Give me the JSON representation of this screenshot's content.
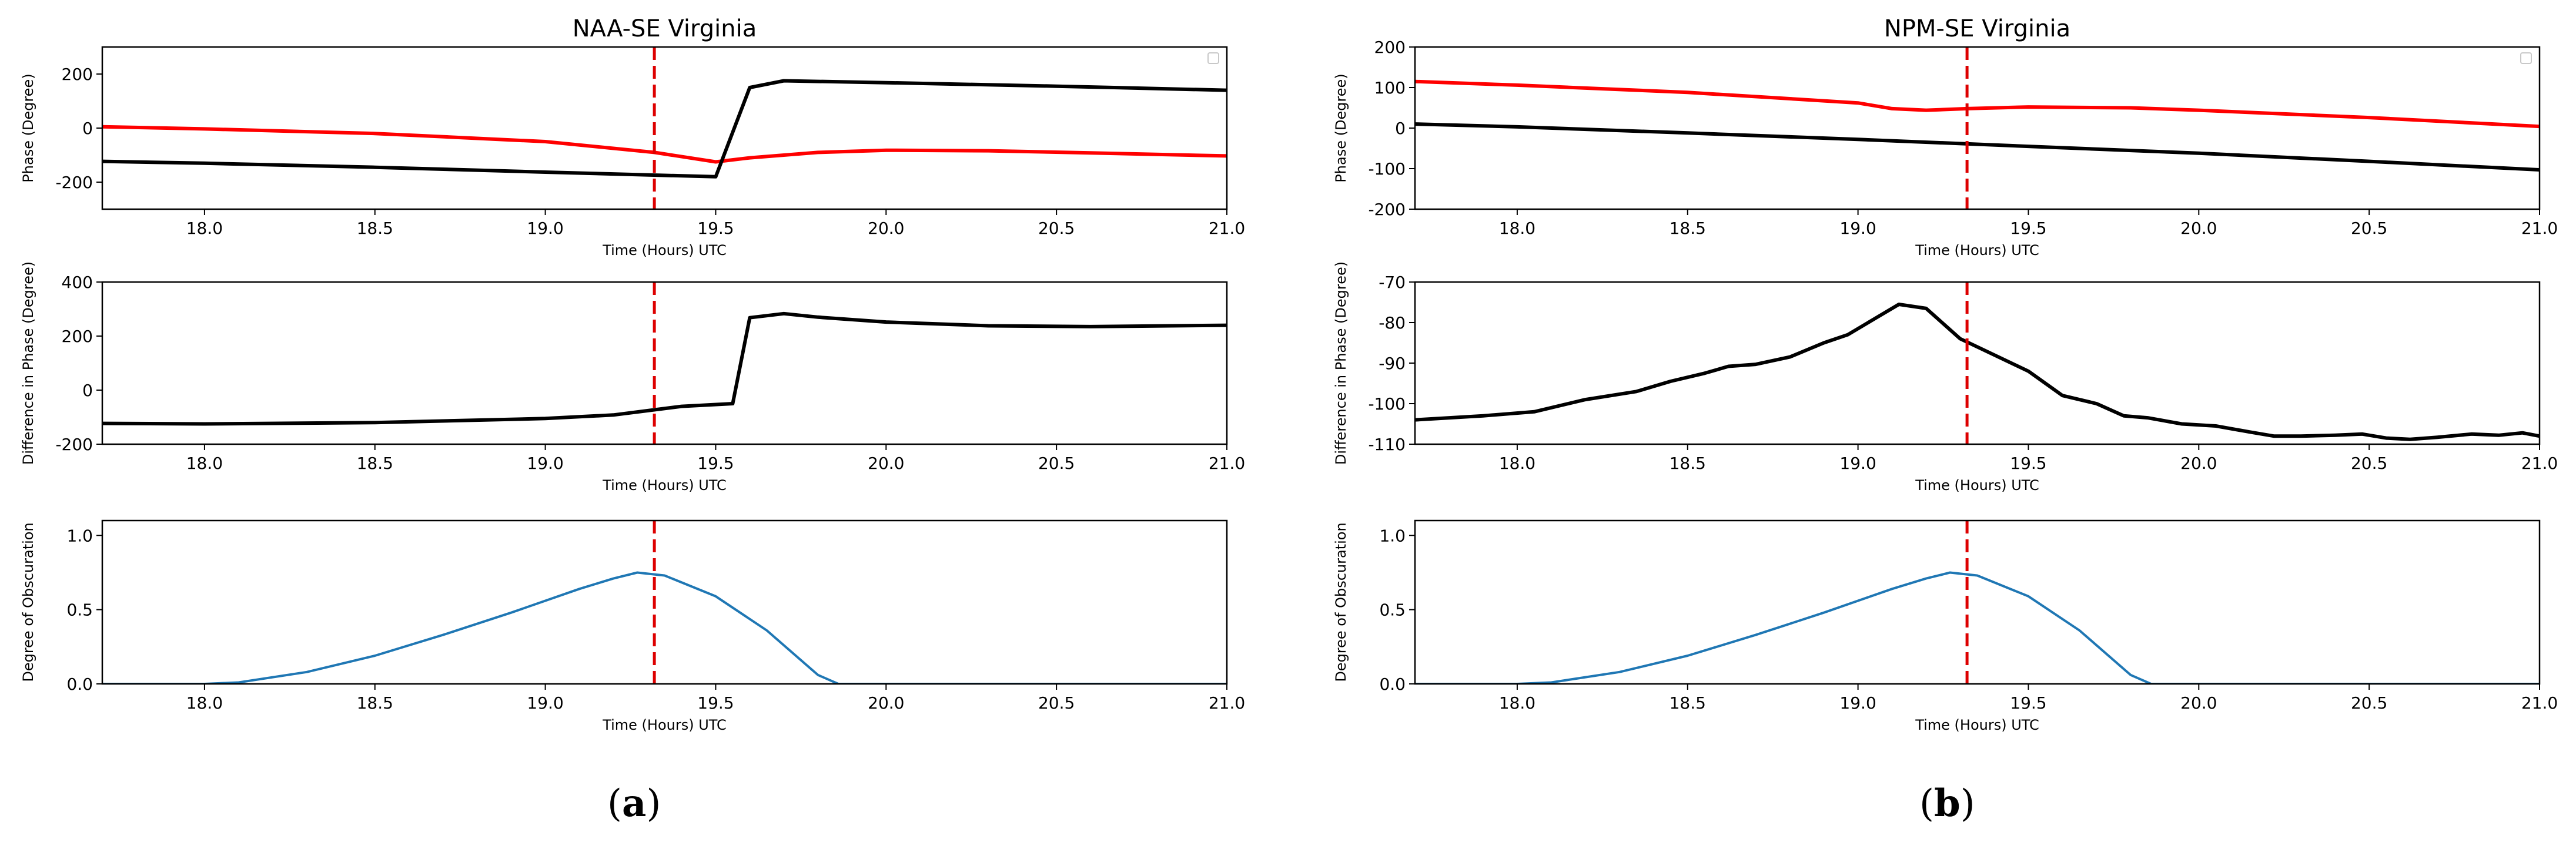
{
  "panel_labels": [
    {
      "open": "(",
      "letter": "a",
      "close": ")"
    },
    {
      "open": "(",
      "letter": "b",
      "close": ")"
    }
  ],
  "colors": {
    "phase_red": "#ff0000",
    "black": "#000000",
    "obscuration": "#1f77b4",
    "eclipse_marker": "#dd0000"
  },
  "chart_data": [
    {
      "id": "naa-phase",
      "type": "line",
      "title": "NAA-SE Virginia",
      "xlabel": "Time (Hours) UTC",
      "ylabel": "Phase (Degree)",
      "xlim": [
        17.7,
        21.0
      ],
      "ylim": [
        -300,
        300
      ],
      "xticks": [
        "18.0",
        "18.5",
        "19.0",
        "19.5",
        "20.0",
        "20.5",
        "21.0"
      ],
      "yticks": [
        "-200",
        "0",
        "200"
      ],
      "vline": 19.32,
      "legend": "top-right (empty)",
      "series": [
        {
          "color": "red",
          "x": [
            17.7,
            18.0,
            18.5,
            19.0,
            19.32,
            19.5,
            19.6,
            19.8,
            20.0,
            20.3,
            20.6,
            21.0
          ],
          "y": [
            5,
            -3,
            -20,
            -50,
            -90,
            -125,
            -110,
            -90,
            -82,
            -84,
            -92,
            -103
          ]
        },
        {
          "color": "black",
          "x": [
            17.7,
            18.0,
            18.5,
            19.0,
            19.5,
            19.6,
            19.7,
            20.0,
            20.5,
            21.0
          ],
          "y": [
            -123,
            -130,
            -145,
            -163,
            -180,
            150,
            175,
            168,
            155,
            140
          ]
        }
      ]
    },
    {
      "id": "naa-diff",
      "type": "line",
      "xlabel": "Time (Hours) UTC",
      "ylabel": "Difference in Phase (Degree)",
      "xlim": [
        17.7,
        21.0
      ],
      "ylim": [
        -200,
        400
      ],
      "xticks": [
        "18.0",
        "18.5",
        "19.0",
        "19.5",
        "20.0",
        "20.5",
        "21.0"
      ],
      "yticks": [
        "-200",
        "0",
        "200",
        "400"
      ],
      "vline": 19.32,
      "series": [
        {
          "color": "black",
          "x": [
            17.7,
            18.0,
            18.5,
            19.0,
            19.2,
            19.4,
            19.55,
            19.6,
            19.7,
            19.8,
            20.0,
            20.3,
            20.6,
            21.0
          ],
          "y": [
            -123,
            -125,
            -120,
            -105,
            -92,
            -60,
            -50,
            268,
            283,
            270,
            252,
            238,
            235,
            240
          ]
        }
      ]
    },
    {
      "id": "naa-obscuration",
      "type": "line",
      "xlabel": "Time (Hours) UTC",
      "ylabel": "Degree of Obscuration",
      "xlim": [
        17.7,
        21.0
      ],
      "ylim": [
        0,
        1.1
      ],
      "xticks": [
        "18.0",
        "18.5",
        "19.0",
        "19.5",
        "20.0",
        "20.5",
        "21.0"
      ],
      "yticks": [
        "0.0",
        "0.5",
        "1.0"
      ],
      "vline": 19.32,
      "series": [
        {
          "color": "blue",
          "x": [
            17.7,
            18.0,
            18.1,
            18.3,
            18.5,
            18.7,
            18.9,
            19.1,
            19.2,
            19.27,
            19.35,
            19.5,
            19.65,
            19.8,
            19.86,
            21.0
          ],
          "y": [
            0,
            0,
            0.01,
            0.08,
            0.19,
            0.33,
            0.48,
            0.64,
            0.71,
            0.75,
            0.73,
            0.59,
            0.36,
            0.06,
            0,
            0
          ]
        }
      ]
    },
    {
      "id": "npm-phase",
      "type": "line",
      "title": "NPM-SE Virginia",
      "xlabel": "Time (Hours) UTC",
      "ylabel": "Phase (Degree)",
      "xlim": [
        17.7,
        21.0
      ],
      "ylim": [
        -200,
        200
      ],
      "xticks": [
        "18.0",
        "18.5",
        "19.0",
        "19.5",
        "20.0",
        "20.5",
        "21.0"
      ],
      "yticks": [
        "-200",
        "-100",
        "0",
        "100",
        "200"
      ],
      "vline": 19.32,
      "legend": "top-right (empty)",
      "series": [
        {
          "color": "red",
          "x": [
            17.7,
            18.0,
            18.5,
            19.0,
            19.1,
            19.2,
            19.32,
            19.5,
            19.8,
            20.0,
            20.5,
            21.0
          ],
          "y": [
            115,
            106,
            88,
            62,
            48,
            44,
            48,
            52,
            50,
            44,
            26,
            4
          ]
        },
        {
          "color": "black",
          "x": [
            17.7,
            18.0,
            18.5,
            19.0,
            19.5,
            20.0,
            20.5,
            21.0
          ],
          "y": [
            10,
            3,
            -12,
            -28,
            -45,
            -62,
            -82,
            -103
          ]
        }
      ]
    },
    {
      "id": "npm-diff",
      "type": "line",
      "xlabel": "Time (Hours) UTC",
      "ylabel": "Difference in Phase (Degree)",
      "xlim": [
        17.7,
        21.0
      ],
      "ylim": [
        -110,
        -70
      ],
      "xticks": [
        "18.0",
        "18.5",
        "19.0",
        "19.5",
        "20.0",
        "20.5",
        "21.0"
      ],
      "yticks": [
        "-110",
        "-100",
        "-90",
        "-80",
        "-70"
      ],
      "vline": 19.32,
      "series": [
        {
          "color": "black",
          "x": [
            17.7,
            17.9,
            18.05,
            18.2,
            18.35,
            18.45,
            18.55,
            18.62,
            18.7,
            18.8,
            18.9,
            18.97,
            19.05,
            19.12,
            19.2,
            19.3,
            19.4,
            19.5,
            19.6,
            19.7,
            19.78,
            19.85,
            19.95,
            20.05,
            20.15,
            20.22,
            20.3,
            20.4,
            20.48,
            20.55,
            20.62,
            20.7,
            20.8,
            20.88,
            20.95,
            21.0
          ],
          "y": [
            -104,
            -103,
            -102,
            -99,
            -97,
            -94.5,
            -92.5,
            -90.8,
            -90.3,
            -88.5,
            -85,
            -83,
            -79,
            -75.5,
            -76.5,
            -84,
            -88,
            -92,
            -98,
            -100,
            -103,
            -103.5,
            -105,
            -105.5,
            -107,
            -108,
            -108,
            -107.8,
            -107.5,
            -108.5,
            -108.8,
            -108.3,
            -107.5,
            -107.8,
            -107.2,
            -108
          ]
        }
      ]
    },
    {
      "id": "npm-obscuration",
      "type": "line",
      "xlabel": "Time (Hours) UTC",
      "ylabel": "Degree of Obscuration",
      "xlim": [
        17.7,
        21.0
      ],
      "ylim": [
        0,
        1.1
      ],
      "xticks": [
        "18.0",
        "18.5",
        "19.0",
        "19.5",
        "20.0",
        "20.5",
        "21.0"
      ],
      "yticks": [
        "0.0",
        "0.5",
        "1.0"
      ],
      "vline": 19.32,
      "series": [
        {
          "color": "blue",
          "x": [
            17.7,
            18.0,
            18.1,
            18.3,
            18.5,
            18.7,
            18.9,
            19.1,
            19.2,
            19.27,
            19.35,
            19.5,
            19.65,
            19.8,
            19.86,
            21.0
          ],
          "y": [
            0,
            0,
            0.01,
            0.08,
            0.19,
            0.33,
            0.48,
            0.64,
            0.71,
            0.75,
            0.73,
            0.59,
            0.36,
            0.06,
            0,
            0
          ]
        }
      ]
    }
  ]
}
